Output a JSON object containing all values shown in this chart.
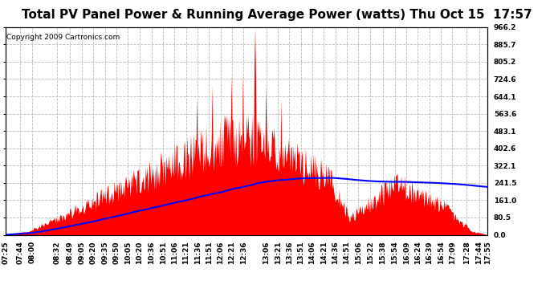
{
  "title": "Total PV Panel Power & Running Average Power (watts) Thu Oct 15  17:57",
  "copyright": "Copyright 2009 Cartronics.com",
  "ylabel_right_ticks": [
    0.0,
    80.5,
    161.0,
    241.5,
    322.1,
    402.6,
    483.1,
    563.6,
    644.1,
    724.6,
    805.2,
    885.7,
    966.2
  ],
  "ylim": [
    0.0,
    966.2
  ],
  "x_tick_labels": [
    "07:25",
    "07:44",
    "08:00",
    "08:32",
    "08:49",
    "09:05",
    "09:20",
    "09:35",
    "09:50",
    "10:05",
    "10:20",
    "10:36",
    "10:51",
    "11:06",
    "11:21",
    "11:36",
    "11:51",
    "12:06",
    "12:21",
    "12:36",
    "13:06",
    "13:21",
    "13:36",
    "13:51",
    "14:06",
    "14:21",
    "14:36",
    "14:51",
    "15:06",
    "15:22",
    "15:38",
    "15:54",
    "16:09",
    "16:24",
    "16:39",
    "16:54",
    "17:09",
    "17:28",
    "17:44",
    "17:55"
  ],
  "bar_color": "#FF0000",
  "line_color": "#0000FF",
  "background_color": "#FFFFFF",
  "grid_color": "#AAAAAA",
  "title_fontsize": 11,
  "copyright_fontsize": 6.5,
  "tick_fontsize": 6.5
}
